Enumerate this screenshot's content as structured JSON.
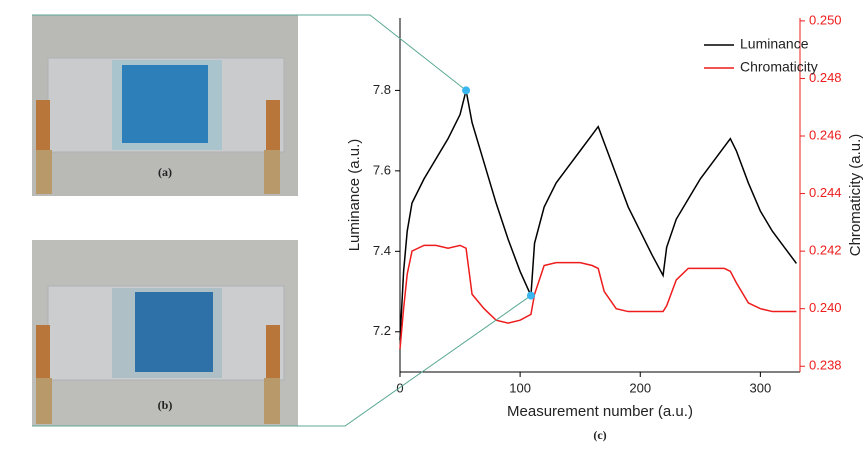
{
  "panels": {
    "a": "(a)",
    "b": "(b)"
  },
  "chart_data": {
    "type": "line",
    "caption": "(c)",
    "x_label": "Measurement number (a.u.)",
    "y_label": "Luminance (a.u.)",
    "y2_label": "Chromaticity (a.u.)",
    "x": [
      0,
      3,
      6,
      10,
      20,
      30,
      40,
      50,
      55,
      60,
      70,
      80,
      90,
      100,
      109,
      112,
      120,
      130,
      140,
      150,
      160,
      165,
      170,
      180,
      190,
      200,
      210,
      219,
      222,
      230,
      240,
      250,
      260,
      270,
      275,
      280,
      290,
      300,
      310,
      320,
      330
    ],
    "series": [
      {
        "name": "Luminance",
        "color": "#000000",
        "values": [
          7.18,
          7.35,
          7.45,
          7.52,
          7.58,
          7.63,
          7.68,
          7.74,
          7.8,
          7.72,
          7.62,
          7.52,
          7.43,
          7.35,
          7.29,
          7.42,
          7.51,
          7.57,
          7.61,
          7.65,
          7.69,
          7.71,
          7.67,
          7.59,
          7.51,
          7.45,
          7.39,
          7.34,
          7.41,
          7.48,
          7.53,
          7.58,
          7.62,
          7.66,
          7.68,
          7.65,
          7.57,
          7.5,
          7.45,
          7.41,
          7.37
        ]
      },
      {
        "name": "Chromaticity",
        "color": "#ee1c1c",
        "axis": "y2",
        "values": [
          0.2386,
          0.24,
          0.2412,
          0.242,
          0.2422,
          0.2422,
          0.2421,
          0.2422,
          0.2421,
          0.2405,
          0.24,
          0.2396,
          0.2395,
          0.2396,
          0.2398,
          0.2405,
          0.2415,
          0.2416,
          0.2416,
          0.2416,
          0.2415,
          0.2414,
          0.2406,
          0.24,
          0.2399,
          0.2399,
          0.2399,
          0.2399,
          0.2401,
          0.241,
          0.2414,
          0.2414,
          0.2414,
          0.2414,
          0.2413,
          0.2409,
          0.2402,
          0.24,
          0.2399,
          0.2399,
          0.2399
        ]
      }
    ],
    "xlim": [
      0,
      333
    ],
    "xticks": [
      0,
      100,
      200,
      300
    ],
    "ylim": [
      7.1,
      7.98
    ],
    "yticks": [
      7.2,
      7.4,
      7.6,
      7.8
    ],
    "y2lim": [
      0.2378,
      0.2501
    ],
    "y2ticks": [
      {
        "value": 0.238,
        "label": "0.238"
      },
      {
        "value": 0.24,
        "label": "0.240"
      },
      0.242,
      0.244,
      0.246,
      0.248,
      {
        "value": 0.25,
        "label": "0.250"
      }
    ],
    "legend": "upper right"
  }
}
